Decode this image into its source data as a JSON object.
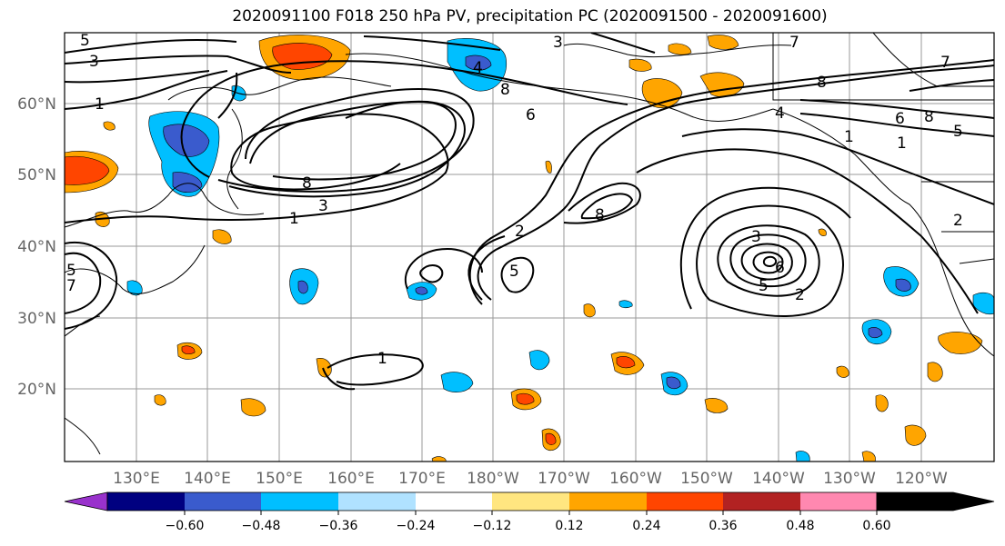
{
  "title": "2020091100 F018 250 hPa PV, precipitation PC (2020091500 - 2020091600)",
  "latitude_labels": [
    "60°N",
    "50°N",
    "40°N",
    "30°N",
    "20°N"
  ],
  "longitude_labels": [
    "130°E",
    "140°E",
    "150°E",
    "160°E",
    "170°E",
    "180°W",
    "170°W",
    "160°W",
    "150°W",
    "140°W",
    "130°W",
    "120°W"
  ],
  "colorbar": {
    "ticks": [
      "−0.60",
      "−0.48",
      "−0.36",
      "−0.24",
      "−0.12",
      "0.12",
      "0.24",
      "0.36",
      "0.48",
      "0.60"
    ],
    "colors": [
      "#9932cc",
      "#000080",
      "#3a5bcd",
      "#00bfff",
      "#b0e2ff",
      "#ffffff",
      "#ffe680",
      "#ffa500",
      "#ff4500",
      "#b22222",
      "#ff88b0"
    ]
  },
  "contour_labels": [
    "5",
    "3",
    "1",
    "3",
    "7",
    "8",
    "3",
    "1",
    "4",
    "8",
    "6",
    "7",
    "8",
    "1",
    "4",
    "6",
    "8",
    "5",
    "1",
    "2",
    "8",
    "5",
    "2",
    "3",
    "6",
    "5",
    "2",
    "5",
    "7",
    "1"
  ]
}
